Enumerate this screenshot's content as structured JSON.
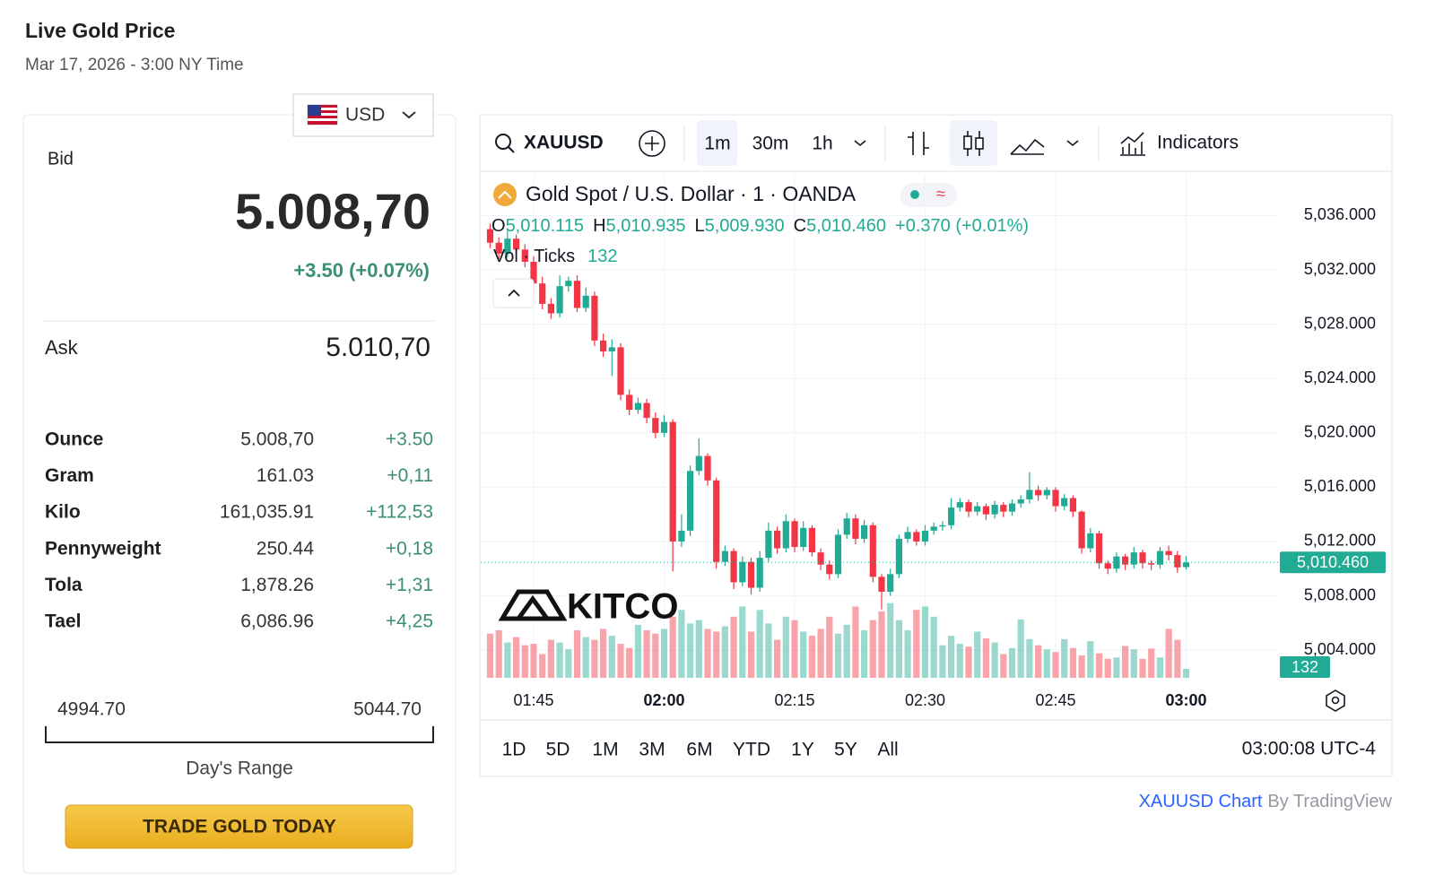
{
  "header": {
    "title": "Live Gold Price",
    "subtitle": "Mar 17, 2026 - 3:00 NY Time"
  },
  "quote": {
    "currency": "USD",
    "bid_label": "Bid",
    "bid": "5.008,70",
    "change": "+3.50 (+0.07%)",
    "ask_label": "Ask",
    "ask": "5.010,70",
    "rows": [
      [
        "Ounce",
        "5.008,70",
        "+3.50"
      ],
      [
        "Gram",
        "161.03",
        "+0,11"
      ],
      [
        "Kilo",
        "161,035.91",
        "+112,53"
      ],
      [
        "Pennyweight",
        "250.44",
        "+0,18"
      ],
      [
        "Tola",
        "1,878.26",
        "+1,31"
      ],
      [
        "Tael",
        "6,086.96",
        "+4,25"
      ]
    ],
    "range": {
      "low": "4994.70",
      "high": "5044.70",
      "label": "Day's Range"
    },
    "button": "TRADE GOLD TODAY"
  },
  "toolbar": {
    "symbol": "XAUUSD",
    "intervals": [
      "1m",
      "30m",
      "1h"
    ],
    "indicators": "Indicators"
  },
  "chart_data": {
    "type": "candlestick",
    "title": "Gold Spot / U.S. Dollar · 1 · OANDA",
    "legend": {
      "o_label": "O",
      "open": "5,010.115",
      "h_label": "H",
      "high": "5,010.935",
      "l_label": "L",
      "low": "5,009.930",
      "c_label": "C",
      "close": "5,010.460",
      "change": "+0.370 (+0.01%)",
      "volume_label": "Vol · Ticks"
    },
    "watermark": "KITCO",
    "up_color": "#22ab94",
    "down_color": "#f23645",
    "x": [
      "01:40",
      "01:41",
      "01:42",
      "01:43",
      "01:44",
      "01:45",
      "01:46",
      "01:47",
      "01:48",
      "01:49",
      "01:50",
      "01:51",
      "01:52",
      "01:53",
      "01:54",
      "01:55",
      "01:56",
      "01:57",
      "01:58",
      "01:59",
      "02:00",
      "02:01",
      "02:02",
      "02:03",
      "02:04",
      "02:05",
      "02:06",
      "02:07",
      "02:08",
      "02:09",
      "02:10",
      "02:11",
      "02:12",
      "02:13",
      "02:14",
      "02:15",
      "02:16",
      "02:17",
      "02:18",
      "02:19",
      "02:20",
      "02:21",
      "02:22",
      "02:23",
      "02:24",
      "02:25",
      "02:26",
      "02:27",
      "02:28",
      "02:29",
      "02:30",
      "02:31",
      "02:32",
      "02:33",
      "02:34",
      "02:35",
      "02:36",
      "02:37",
      "02:38",
      "02:39",
      "02:40",
      "02:41",
      "02:42",
      "02:43",
      "02:44",
      "02:45",
      "02:46",
      "02:47",
      "02:48",
      "02:49",
      "02:50",
      "02:51",
      "02:52",
      "02:53",
      "02:54",
      "02:55",
      "02:56",
      "02:57",
      "02:58",
      "02:59",
      "03:00"
    ],
    "open": [
      5035.0,
      5034.0,
      5033.2,
      5034.3,
      5033.5,
      5032.6,
      5031.0,
      5029.5,
      5028.8,
      5030.8,
      5031.2,
      5029.2,
      5030.1,
      5026.8,
      5026.0,
      5026.3,
      5022.8,
      5021.7,
      5022.2,
      5021.1,
      5020.0,
      5020.8,
      5012.0,
      5012.8,
      5017.2,
      5018.3,
      5016.5,
      5010.5,
      5011.3,
      5009.0,
      5010.5,
      5008.6,
      5010.8,
      5012.8,
      5011.5,
      5013.5,
      5011.6,
      5013.0,
      5011.2,
      5010.3,
      5009.6,
      5012.5,
      5013.7,
      5012.2,
      5013.2,
      5009.4,
      5008.3,
      5009.6,
      5012.2,
      5012.7,
      5012.0,
      5012.8,
      5013.1,
      5013.2,
      5014.5,
      5014.9,
      5014.2,
      5014.6,
      5014.0,
      5014.7,
      5014.2,
      5014.8,
      5015.1,
      5015.8,
      5015.4,
      5015.8,
      5014.6,
      5015.2,
      5014.2,
      5011.5,
      5012.6,
      5010.4,
      5010.0,
      5010.9,
      5010.3,
      5011.2,
      5010.4,
      5010.3,
      5011.3,
      5011.0,
      5010.115
    ],
    "high": [
      5035.4,
      5034.4,
      5034.9,
      5034.6,
      5033.9,
      5033.0,
      5031.5,
      5029.9,
      5031.6,
      5031.5,
      5031.6,
      5030.7,
      5030.4,
      5027.3,
      5026.9,
      5026.6,
      5023.2,
      5022.6,
      5022.5,
      5021.5,
      5021.3,
      5021.0,
      5014.0,
      5017.6,
      5019.6,
      5018.5,
      5016.7,
      5011.7,
      5011.5,
      5010.9,
      5010.8,
      5011.3,
      5013.4,
      5013.1,
      5014.0,
      5013.7,
      5013.5,
      5013.2,
      5011.5,
      5010.6,
      5012.9,
      5014.1,
      5014.0,
      5013.6,
      5013.4,
      5009.6,
      5010.0,
      5012.5,
      5013.1,
      5012.9,
      5013.2,
      5013.4,
      5013.5,
      5015.2,
      5015.2,
      5015.1,
      5014.9,
      5014.8,
      5015.0,
      5014.9,
      5015.1,
      5015.4,
      5017.1,
      5016.1,
      5016.0,
      5016.0,
      5015.5,
      5015.4,
      5014.3,
      5013.0,
      5012.8,
      5010.6,
      5011.2,
      5011.1,
      5011.6,
      5011.4,
      5010.6,
      5011.6,
      5011.7,
      5011.3,
      5010.935
    ],
    "low": [
      5033.6,
      5032.8,
      5032.9,
      5033.1,
      5032.2,
      5030.6,
      5029.1,
      5028.4,
      5028.5,
      5030.4,
      5028.9,
      5028.9,
      5026.4,
      5025.6,
      5024.2,
      5022.4,
      5021.3,
      5021.4,
      5020.7,
      5019.6,
      5019.7,
      5009.8,
      5011.6,
      5012.4,
      5016.9,
      5016.1,
      5010.0,
      5010.2,
      5008.5,
      5008.7,
      5008.1,
      5008.3,
      5010.5,
      5011.1,
      5011.2,
      5011.2,
      5011.3,
      5010.9,
      5009.9,
      5009.2,
      5009.3,
      5012.2,
      5011.8,
      5011.9,
      5009.0,
      5007.0,
      5008.0,
      5009.3,
      5011.9,
      5011.7,
      5011.7,
      5012.5,
      5012.8,
      5012.9,
      5014.2,
      5013.8,
      5013.9,
      5013.6,
      5013.7,
      5013.8,
      5013.9,
      5014.5,
      5014.8,
      5015.0,
      5015.1,
      5014.2,
      5014.3,
      5013.8,
      5011.1,
      5011.2,
      5010.0,
      5009.6,
      5009.7,
      5009.9,
      5010.0,
      5010.0,
      5009.9,
      5010.0,
      5010.6,
      5009.7,
      5009.93
    ],
    "close": [
      5034.0,
      5033.2,
      5034.3,
      5033.5,
      5032.6,
      5031.0,
      5029.5,
      5028.8,
      5030.8,
      5031.2,
      5029.2,
      5030.1,
      5026.8,
      5026.0,
      5026.3,
      5022.8,
      5021.7,
      5022.2,
      5021.1,
      5020.0,
      5020.8,
      5012.0,
      5012.8,
      5017.2,
      5018.3,
      5016.5,
      5010.5,
      5011.3,
      5009.0,
      5010.5,
      5008.6,
      5010.8,
      5012.8,
      5011.5,
      5013.5,
      5011.6,
      5013.0,
      5011.2,
      5010.3,
      5009.6,
      5012.5,
      5013.7,
      5012.2,
      5013.2,
      5009.4,
      5008.3,
      5009.6,
      5012.2,
      5012.7,
      5012.0,
      5012.8,
      5013.1,
      5013.2,
      5014.5,
      5014.9,
      5014.2,
      5014.6,
      5014.0,
      5014.7,
      5014.2,
      5014.8,
      5015.1,
      5015.8,
      5015.4,
      5015.8,
      5014.6,
      5015.2,
      5014.2,
      5011.5,
      5012.6,
      5010.4,
      5010.0,
      5010.9,
      5010.3,
      5011.2,
      5010.4,
      5010.3,
      5011.3,
      5011.0,
      5010.1,
      5010.46
    ],
    "volume": [
      650,
      700,
      520,
      600,
      480,
      500,
      350,
      560,
      520,
      420,
      700,
      600,
      560,
      720,
      620,
      500,
      440,
      780,
      700,
      650,
      720,
      900,
      1000,
      800,
      850,
      720,
      680,
      760,
      900,
      1050,
      680,
      1000,
      800,
      560,
      900,
      850,
      680,
      620,
      720,
      900,
      650,
      780,
      1050,
      700,
      850,
      980,
      1100,
      850,
      700,
      1000,
      1050,
      900,
      480,
      620,
      500,
      460,
      680,
      580,
      520,
      350,
      440,
      860,
      570,
      480,
      420,
      380,
      570,
      440,
      330,
      540,
      360,
      280,
      300,
      470,
      420,
      280,
      430,
      300,
      720,
      560,
      132
    ],
    "vlim": [
      0,
      1650
    ],
    "ylim": [
      5001.7,
      5039
    ],
    "yticks": [
      {
        "value": 5004,
        "label": "5,004.000"
      },
      {
        "value": 5008,
        "label": "5,008.000"
      },
      {
        "value": 5012,
        "label": "5,012.000"
      },
      {
        "value": 5016,
        "label": "5,016.000"
      },
      {
        "value": 5020,
        "label": "5,020.000"
      },
      {
        "value": 5024,
        "label": "5,024.000"
      },
      {
        "value": 5028,
        "label": "5,028.000"
      },
      {
        "value": 5032,
        "label": "5,032.000"
      },
      {
        "value": 5036,
        "label": "5,036.000"
      }
    ],
    "last_price": {
      "value": 5010.46,
      "label": "5,010.460"
    },
    "xticks": [
      "01:45",
      "02:00",
      "02:15",
      "02:30",
      "02:45",
      "03:00"
    ],
    "grid": true,
    "ranges": [
      "1D",
      "5D",
      "1M",
      "3M",
      "6M",
      "YTD",
      "1Y",
      "5Y",
      "All"
    ],
    "clock": "03:00:08 UTC-4"
  },
  "footer": {
    "link": "XAUUSD Chart",
    "by": "By TradingView"
  }
}
